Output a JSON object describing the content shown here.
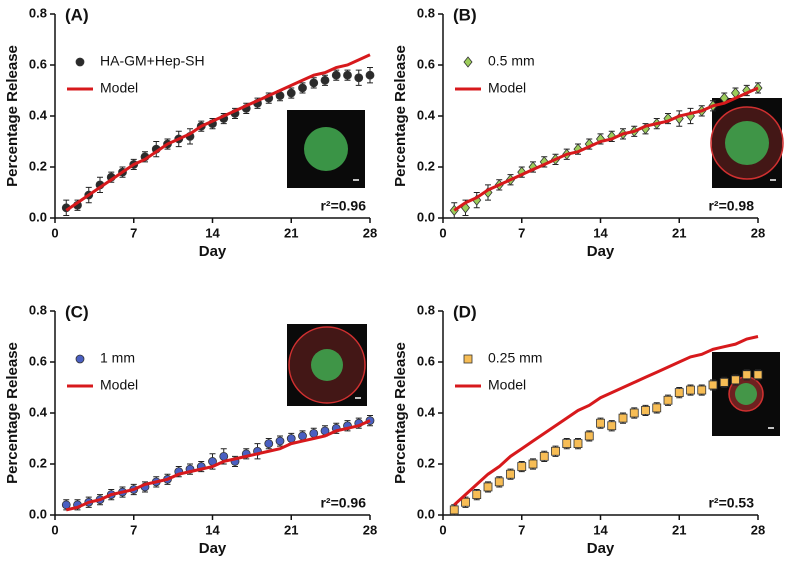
{
  "chart_data": [
    {
      "type": "scatter",
      "title": "(A)",
      "xlabel": "Day",
      "ylabel": "Percentage Release",
      "annotation": "r²=0.96",
      "xlim": [
        0,
        28
      ],
      "xticks": [
        0,
        7,
        14,
        21,
        28
      ],
      "ylim": [
        0,
        0.8
      ],
      "yticks": [
        {
          "value": 0,
          "label": "0.0"
        },
        0.2,
        0.4,
        0.6,
        0.8
      ],
      "x": [
        1,
        2,
        3,
        4,
        5,
        6,
        7,
        8,
        9,
        10,
        11,
        12,
        13,
        14,
        15,
        16,
        17,
        18,
        19,
        20,
        21,
        22,
        23,
        24,
        25,
        26,
        27,
        28
      ],
      "series": [
        {
          "name": "HA-GM+Hep-SH",
          "color": "#2b2b2b",
          "marker": "circle",
          "values": [
            0.04,
            0.05,
            0.09,
            0.13,
            0.16,
            0.18,
            0.21,
            0.24,
            0.27,
            0.29,
            0.31,
            0.32,
            0.36,
            0.37,
            0.39,
            0.41,
            0.43,
            0.45,
            0.47,
            0.48,
            0.49,
            0.51,
            0.53,
            0.54,
            0.56,
            0.56,
            0.55,
            0.56
          ],
          "errors": [
            0.03,
            0.02,
            0.03,
            0.03,
            0.02,
            0.02,
            0.02,
            0.02,
            0.03,
            0.02,
            0.03,
            0.03,
            0.02,
            0.02,
            0.02,
            0.02,
            0.02,
            0.02,
            0.02,
            0.02,
            0.02,
            0.02,
            0.02,
            0.02,
            0.02,
            0.02,
            0.03,
            0.03
          ]
        },
        {
          "name": "Model",
          "color": "#d7191c",
          "type": "line",
          "values": [
            0.03,
            0.06,
            0.09,
            0.12,
            0.15,
            0.18,
            0.21,
            0.23,
            0.26,
            0.29,
            0.31,
            0.33,
            0.36,
            0.38,
            0.4,
            0.42,
            0.44,
            0.46,
            0.48,
            0.5,
            0.52,
            0.54,
            0.56,
            0.57,
            0.59,
            0.6,
            0.62,
            0.64
          ]
        }
      ]
    },
    {
      "type": "scatter",
      "title": "(B)",
      "xlabel": "Day",
      "ylabel": "Percentage Release",
      "annotation": "r²=0.98",
      "xlim": [
        0,
        28
      ],
      "xticks": [
        0,
        7,
        14,
        21,
        28
      ],
      "ylim": [
        0,
        0.8
      ],
      "yticks": [
        {
          "value": 0,
          "label": "0.0"
        },
        0.2,
        0.4,
        0.6,
        0.8
      ],
      "x": [
        1,
        2,
        3,
        4,
        5,
        6,
        7,
        8,
        9,
        10,
        11,
        12,
        13,
        14,
        15,
        16,
        17,
        18,
        19,
        20,
        21,
        22,
        23,
        24,
        25,
        26,
        27,
        28
      ],
      "series": [
        {
          "name": "0.5 mm",
          "color": "#9ccc5a",
          "marker": "diamond",
          "values": [
            0.03,
            0.04,
            0.07,
            0.1,
            0.13,
            0.15,
            0.18,
            0.2,
            0.22,
            0.23,
            0.25,
            0.27,
            0.29,
            0.31,
            0.32,
            0.33,
            0.34,
            0.35,
            0.37,
            0.39,
            0.39,
            0.4,
            0.42,
            0.44,
            0.47,
            0.49,
            0.5,
            0.51
          ],
          "errors": [
            0.03,
            0.03,
            0.03,
            0.03,
            0.02,
            0.02,
            0.02,
            0.02,
            0.02,
            0.02,
            0.02,
            0.02,
            0.02,
            0.02,
            0.02,
            0.02,
            0.02,
            0.02,
            0.02,
            0.02,
            0.03,
            0.03,
            0.02,
            0.02,
            0.02,
            0.02,
            0.02,
            0.02
          ]
        },
        {
          "name": "Model",
          "color": "#d7191c",
          "type": "line",
          "values": [
            0.03,
            0.06,
            0.08,
            0.11,
            0.13,
            0.15,
            0.17,
            0.19,
            0.21,
            0.23,
            0.25,
            0.26,
            0.28,
            0.3,
            0.31,
            0.33,
            0.34,
            0.36,
            0.37,
            0.38,
            0.4,
            0.41,
            0.42,
            0.44,
            0.45,
            0.47,
            0.49,
            0.51
          ]
        }
      ]
    },
    {
      "type": "scatter",
      "title": "(C)",
      "xlabel": "Day",
      "ylabel": "Percentage Release",
      "annotation": "r²=0.96",
      "xlim": [
        0,
        28
      ],
      "xticks": [
        0,
        7,
        14,
        21,
        28
      ],
      "ylim": [
        0,
        0.8
      ],
      "yticks": [
        {
          "value": 0,
          "label": "0.0"
        },
        0.2,
        0.4,
        0.6,
        0.8
      ],
      "x": [
        1,
        2,
        3,
        4,
        5,
        6,
        7,
        8,
        9,
        10,
        11,
        12,
        13,
        14,
        15,
        16,
        17,
        18,
        19,
        20,
        21,
        22,
        23,
        24,
        25,
        26,
        27,
        28
      ],
      "series": [
        {
          "name": "1 mm",
          "color": "#4a5fc1",
          "marker": "circle",
          "values": [
            0.04,
            0.04,
            0.05,
            0.06,
            0.08,
            0.09,
            0.1,
            0.11,
            0.13,
            0.14,
            0.17,
            0.18,
            0.19,
            0.21,
            0.23,
            0.21,
            0.24,
            0.25,
            0.28,
            0.29,
            0.3,
            0.31,
            0.32,
            0.33,
            0.34,
            0.35,
            0.36,
            0.37
          ],
          "errors": [
            0.02,
            0.02,
            0.02,
            0.02,
            0.02,
            0.02,
            0.02,
            0.02,
            0.02,
            0.02,
            0.02,
            0.02,
            0.02,
            0.03,
            0.03,
            0.02,
            0.02,
            0.03,
            0.02,
            0.02,
            0.02,
            0.02,
            0.02,
            0.02,
            0.02,
            0.02,
            0.02,
            0.02
          ]
        },
        {
          "name": "Model",
          "color": "#d7191c",
          "type": "line",
          "values": [
            0.02,
            0.03,
            0.05,
            0.06,
            0.08,
            0.09,
            0.1,
            0.12,
            0.13,
            0.14,
            0.16,
            0.17,
            0.18,
            0.19,
            0.21,
            0.22,
            0.23,
            0.24,
            0.25,
            0.26,
            0.28,
            0.29,
            0.3,
            0.31,
            0.33,
            0.34,
            0.35,
            0.37
          ]
        }
      ]
    },
    {
      "type": "scatter",
      "title": "(D)",
      "xlabel": "Day",
      "ylabel": "Percentage Release",
      "annotation": "r²=0.53",
      "xlim": [
        0,
        28
      ],
      "xticks": [
        0,
        7,
        14,
        21,
        28
      ],
      "ylim": [
        0,
        0.8
      ],
      "yticks": [
        {
          "value": 0,
          "label": "0.0"
        },
        0.2,
        0.4,
        0.6,
        0.8
      ],
      "x": [
        1,
        2,
        3,
        4,
        5,
        6,
        7,
        8,
        9,
        10,
        11,
        12,
        13,
        14,
        15,
        16,
        17,
        18,
        19,
        20,
        21,
        22,
        23,
        24,
        25,
        26,
        27,
        28
      ],
      "series": [
        {
          "name": "0.25 mm",
          "color": "#f7bd55",
          "marker": "square",
          "values": [
            0.02,
            0.05,
            0.08,
            0.11,
            0.13,
            0.16,
            0.19,
            0.2,
            0.23,
            0.25,
            0.28,
            0.28,
            0.31,
            0.36,
            0.35,
            0.38,
            0.4,
            0.41,
            0.42,
            0.45,
            0.48,
            0.49,
            0.49,
            0.51,
            0.52,
            0.53,
            0.55,
            0.55
          ],
          "errors": [
            0.02,
            0.02,
            0.02,
            0.02,
            0.02,
            0.02,
            0.02,
            0.02,
            0.02,
            0.02,
            0.02,
            0.02,
            0.02,
            0.02,
            0.02,
            0.02,
            0.02,
            0.02,
            0.02,
            0.02,
            0.02,
            0.02,
            0.02,
            0.02,
            0.02,
            0.02,
            0.02,
            0.02
          ]
        },
        {
          "name": "Model",
          "color": "#d7191c",
          "type": "line",
          "values": [
            0.04,
            0.08,
            0.12,
            0.16,
            0.19,
            0.23,
            0.26,
            0.29,
            0.32,
            0.35,
            0.38,
            0.41,
            0.43,
            0.46,
            0.48,
            0.5,
            0.52,
            0.54,
            0.56,
            0.58,
            0.6,
            0.62,
            0.63,
            0.65,
            0.66,
            0.67,
            0.69,
            0.7
          ]
        }
      ]
    }
  ]
}
